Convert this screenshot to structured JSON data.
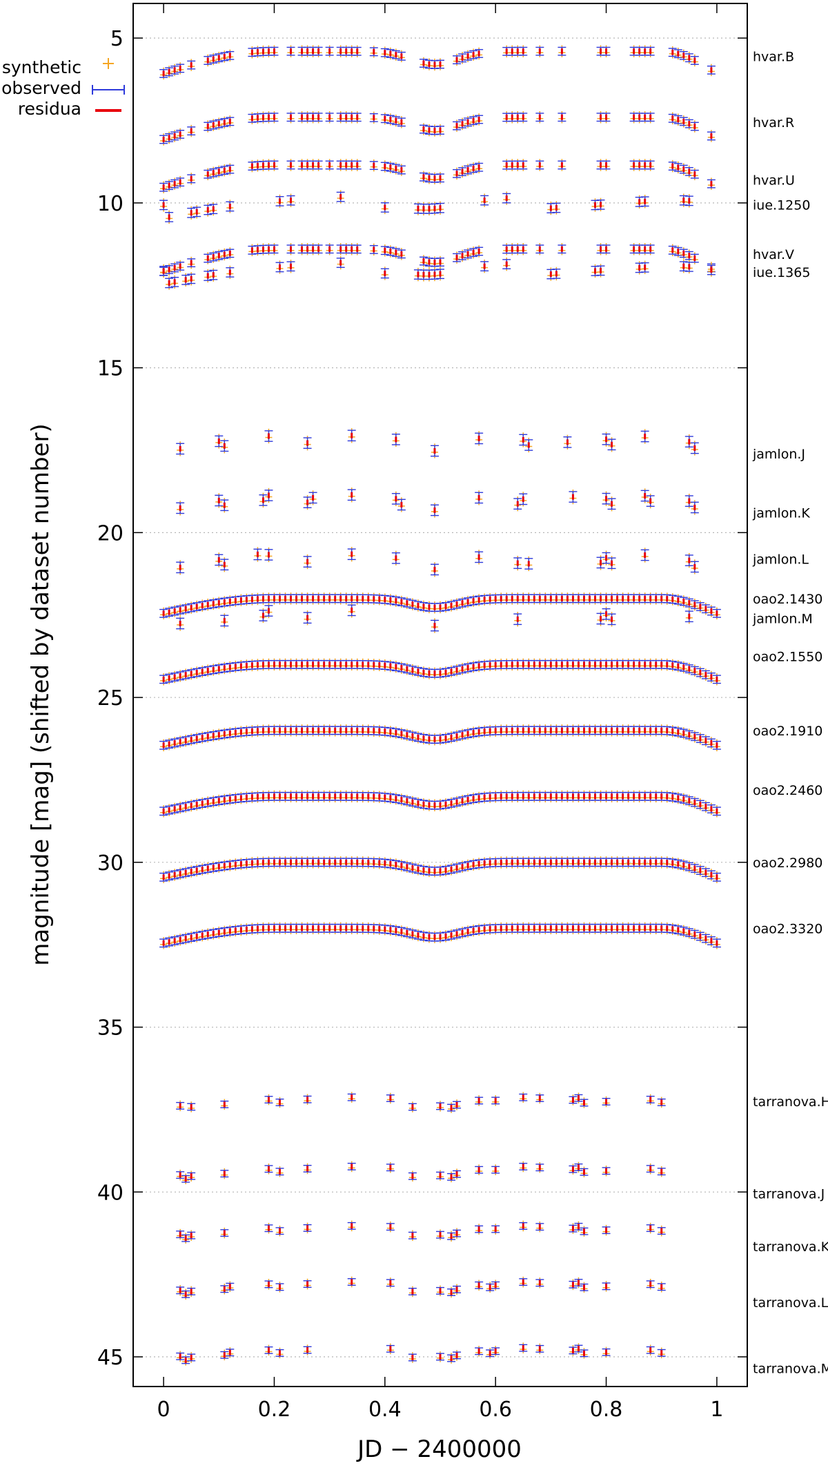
{
  "chart_data": {
    "type": "scatter",
    "title": "",
    "xlabel": "JD − 2400000",
    "ylabel": "magnitude [mag] (shifted by dataset number)",
    "xlim": [
      -0.055,
      1.055
    ],
    "ylim": [
      45.9,
      3.95
    ],
    "y_inverted": true,
    "grid": "horizontal dotted",
    "x_ticks": [
      "0",
      "0.2",
      "0.4",
      "0.6",
      "0.8",
      "1"
    ],
    "y_ticks": [
      "5",
      "10",
      "15",
      "20",
      "25",
      "30",
      "35",
      "40",
      "45"
    ],
    "legend_position": "top-left",
    "legend": [
      {
        "name": "synthetic",
        "color": "#f5a623",
        "marker": "plus"
      },
      {
        "name": "observed",
        "color": "#2e3adb",
        "marker": "errorbar"
      },
      {
        "name": "residua",
        "color": "#e8000b",
        "marker": "line"
      }
    ],
    "datasets": [
      {
        "name": "hvar.B",
        "label_mag": 5.55,
        "kind": "hvar",
        "base": 5.4,
        "phases": [
          0.0,
          0.01,
          0.02,
          0.03,
          0.05,
          0.08,
          0.09,
          0.1,
          0.11,
          0.12,
          0.16,
          0.17,
          0.18,
          0.19,
          0.2,
          0.23,
          0.25,
          0.26,
          0.27,
          0.28,
          0.3,
          0.32,
          0.33,
          0.34,
          0.35,
          0.38,
          0.4,
          0.41,
          0.42,
          0.43,
          0.47,
          0.48,
          0.49,
          0.5,
          0.53,
          0.54,
          0.55,
          0.56,
          0.57,
          0.62,
          0.63,
          0.64,
          0.65,
          0.68,
          0.72,
          0.79,
          0.8,
          0.85,
          0.86,
          0.87,
          0.88,
          0.92,
          0.93,
          0.94,
          0.95,
          0.96,
          0.99
        ]
      },
      {
        "name": "hvar.R",
        "label_mag": 7.55,
        "kind": "hvar",
        "base": 7.4,
        "phases": [
          0.0,
          0.01,
          0.02,
          0.03,
          0.05,
          0.08,
          0.09,
          0.1,
          0.11,
          0.12,
          0.16,
          0.17,
          0.18,
          0.19,
          0.2,
          0.23,
          0.25,
          0.26,
          0.27,
          0.28,
          0.3,
          0.32,
          0.33,
          0.34,
          0.35,
          0.38,
          0.4,
          0.41,
          0.42,
          0.43,
          0.47,
          0.48,
          0.49,
          0.5,
          0.53,
          0.54,
          0.55,
          0.56,
          0.57,
          0.62,
          0.63,
          0.64,
          0.65,
          0.68,
          0.72,
          0.79,
          0.8,
          0.85,
          0.86,
          0.87,
          0.88,
          0.92,
          0.93,
          0.94,
          0.95,
          0.96,
          0.99
        ]
      },
      {
        "name": "hvar.U",
        "label_mag": 9.3,
        "kind": "hvar",
        "base": 8.85,
        "phases": [
          0.0,
          0.01,
          0.02,
          0.03,
          0.05,
          0.08,
          0.09,
          0.1,
          0.11,
          0.12,
          0.16,
          0.17,
          0.18,
          0.19,
          0.2,
          0.23,
          0.25,
          0.26,
          0.27,
          0.28,
          0.3,
          0.32,
          0.33,
          0.34,
          0.35,
          0.38,
          0.4,
          0.41,
          0.42,
          0.43,
          0.47,
          0.48,
          0.49,
          0.5,
          0.53,
          0.54,
          0.55,
          0.56,
          0.57,
          0.62,
          0.63,
          0.64,
          0.65,
          0.68,
          0.72,
          0.79,
          0.8,
          0.85,
          0.86,
          0.87,
          0.88,
          0.92,
          0.93,
          0.94,
          0.95,
          0.96,
          0.99
        ]
      },
      {
        "name": "iue.1250",
        "label_mag": 10.05,
        "kind": "iue",
        "base": 10.0,
        "phases": [
          0.0,
          0.01,
          0.05,
          0.06,
          0.08,
          0.09,
          0.12,
          0.21,
          0.23,
          0.32,
          0.4,
          0.46,
          0.47,
          0.48,
          0.49,
          0.5,
          0.58,
          0.62,
          0.7,
          0.71,
          0.78,
          0.79,
          0.86,
          0.87,
          0.94,
          0.95
        ]
      },
      {
        "name": "hvar.V",
        "label_mag": 11.55,
        "kind": "hvar",
        "base": 11.4,
        "phases": [
          0.0,
          0.01,
          0.02,
          0.03,
          0.05,
          0.08,
          0.09,
          0.1,
          0.11,
          0.12,
          0.16,
          0.17,
          0.18,
          0.19,
          0.2,
          0.23,
          0.25,
          0.26,
          0.27,
          0.28,
          0.3,
          0.32,
          0.33,
          0.34,
          0.35,
          0.38,
          0.4,
          0.41,
          0.42,
          0.43,
          0.47,
          0.48,
          0.49,
          0.5,
          0.53,
          0.54,
          0.55,
          0.56,
          0.57,
          0.62,
          0.63,
          0.64,
          0.65,
          0.68,
          0.72,
          0.79,
          0.8,
          0.85,
          0.86,
          0.87,
          0.88,
          0.92,
          0.93,
          0.94,
          0.95,
          0.96,
          0.99
        ]
      },
      {
        "name": "iue.1365",
        "label_mag": 12.1,
        "kind": "iue",
        "base": 12.0,
        "phases": [
          0.0,
          0.01,
          0.02,
          0.04,
          0.05,
          0.08,
          0.09,
          0.12,
          0.21,
          0.23,
          0.32,
          0.4,
          0.46,
          0.47,
          0.48,
          0.49,
          0.5,
          0.58,
          0.62,
          0.7,
          0.71,
          0.78,
          0.79,
          0.86,
          0.87,
          0.94,
          0.95,
          0.99
        ]
      },
      {
        "name": "jamlon.J",
        "label_mag": 17.6,
        "kind": "sparse",
        "base": 17.2,
        "phases": [
          0.03,
          0.1,
          0.11,
          0.19,
          0.26,
          0.34,
          0.42,
          0.49,
          0.57,
          0.65,
          0.66,
          0.73,
          0.8,
          0.81,
          0.87,
          0.95,
          0.96
        ]
      },
      {
        "name": "jamlon.K",
        "label_mag": 19.4,
        "kind": "sparse",
        "base": 19.0,
        "phases": [
          0.03,
          0.1,
          0.11,
          0.18,
          0.19,
          0.26,
          0.27,
          0.34,
          0.42,
          0.43,
          0.49,
          0.57,
          0.64,
          0.65,
          0.74,
          0.8,
          0.81,
          0.87,
          0.88,
          0.95,
          0.96
        ]
      },
      {
        "name": "jamlon.L",
        "label_mag": 20.8,
        "kind": "sparse",
        "base": 20.8,
        "phases": [
          0.03,
          0.1,
          0.11,
          0.17,
          0.19,
          0.26,
          0.34,
          0.42,
          0.49,
          0.57,
          0.64,
          0.66,
          0.79,
          0.8,
          0.81,
          0.87,
          0.95,
          0.96
        ]
      },
      {
        "name": "jamlon.M",
        "label_mag": 22.6,
        "kind": "sparse",
        "base": 22.5,
        "phases": [
          0.03,
          0.11,
          0.18,
          0.19,
          0.26,
          0.34,
          0.49,
          0.64,
          0.79,
          0.8,
          0.81,
          0.95
        ]
      },
      {
        "name": "oao2.1430",
        "label_mag": 22.0,
        "kind": "oao",
        "base": 22.0,
        "phases": "0..1 step 0.01"
      },
      {
        "name": "oao2.1550",
        "label_mag": 23.75,
        "kind": "oao",
        "base": 24.0,
        "phases": "0..1 step 0.01"
      },
      {
        "name": "oao2.1910",
        "label_mag": 26.0,
        "kind": "oao",
        "base": 26.0,
        "phases": "0..1 step 0.01"
      },
      {
        "name": "oao2.2460",
        "label_mag": 27.8,
        "kind": "oao",
        "base": 28.0,
        "phases": "0..1 step 0.01"
      },
      {
        "name": "oao2.2980",
        "label_mag": 30.0,
        "kind": "oao",
        "base": 30.0,
        "phases": "0..1 step 0.01"
      },
      {
        "name": "oao2.3320",
        "label_mag": 32.0,
        "kind": "oao",
        "base": 32.0,
        "phases": "0..1 step 0.01"
      },
      {
        "name": "tarranova.H",
        "label_mag": 37.25,
        "kind": "tarra",
        "base": 37.2,
        "phases": [
          0.03,
          0.05,
          0.11,
          0.19,
          0.21,
          0.26,
          0.34,
          0.41,
          0.45,
          0.5,
          0.52,
          0.53,
          0.57,
          0.6,
          0.65,
          0.68,
          0.74,
          0.75,
          0.76,
          0.8,
          0.88,
          0.9
        ]
      },
      {
        "name": "tarranova.J",
        "label_mag": 40.05,
        "kind": "tarra",
        "base": 39.3,
        "phases": [
          0.03,
          0.04,
          0.05,
          0.11,
          0.19,
          0.21,
          0.26,
          0.34,
          0.41,
          0.45,
          0.5,
          0.52,
          0.53,
          0.57,
          0.6,
          0.65,
          0.68,
          0.74,
          0.75,
          0.76,
          0.8,
          0.88,
          0.9
        ]
      },
      {
        "name": "tarranova.K",
        "label_mag": 41.65,
        "kind": "tarra",
        "base": 41.1,
        "phases": [
          0.03,
          0.04,
          0.05,
          0.11,
          0.19,
          0.21,
          0.26,
          0.34,
          0.41,
          0.45,
          0.5,
          0.52,
          0.53,
          0.57,
          0.6,
          0.65,
          0.68,
          0.74,
          0.75,
          0.76,
          0.8,
          0.88,
          0.9
        ]
      },
      {
        "name": "tarranova.L",
        "label_mag": 43.35,
        "kind": "tarra",
        "base": 42.8,
        "phases": [
          0.03,
          0.04,
          0.05,
          0.11,
          0.12,
          0.19,
          0.21,
          0.26,
          0.34,
          0.41,
          0.45,
          0.5,
          0.52,
          0.53,
          0.57,
          0.59,
          0.6,
          0.65,
          0.68,
          0.74,
          0.75,
          0.76,
          0.8,
          0.88,
          0.9
        ]
      },
      {
        "name": "tarranova.M",
        "label_mag": 45.35,
        "kind": "tarra",
        "base": 44.8,
        "phases": [
          0.03,
          0.04,
          0.05,
          0.11,
          0.12,
          0.19,
          0.21,
          0.26,
          0.41,
          0.45,
          0.5,
          0.52,
          0.53,
          0.57,
          0.59,
          0.6,
          0.65,
          0.68,
          0.74,
          0.75,
          0.76,
          0.8,
          0.88,
          0.9
        ]
      }
    ]
  }
}
